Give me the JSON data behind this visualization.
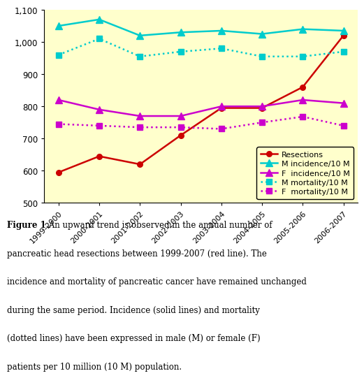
{
  "x_labels": [
    "1999-2000",
    "2000-2001",
    "2001-2002",
    "2002-2003",
    "2003-2004",
    "2004-2005",
    "2005-2006",
    "2006-2007"
  ],
  "x_positions": [
    0,
    1,
    2,
    3,
    4,
    5,
    6,
    7
  ],
  "resections": [
    595,
    645,
    620,
    710,
    795,
    795,
    860,
    1020
  ],
  "m_incidence": [
    1050,
    1070,
    1020,
    1030,
    1035,
    1025,
    1040,
    1035
  ],
  "f_incidence": [
    820,
    790,
    770,
    770,
    800,
    800,
    820,
    810
  ],
  "m_mortality": [
    960,
    1010,
    955,
    970,
    980,
    955,
    955,
    970
  ],
  "f_mortality": [
    745,
    740,
    735,
    735,
    730,
    750,
    768,
    740
  ],
  "ylim": [
    500,
    1100
  ],
  "yticks": [
    500,
    600,
    700,
    800,
    900,
    1000,
    1100
  ],
  "ytick_labels": [
    "500",
    "600",
    "700",
    "800",
    "900",
    "1,000",
    "1,100"
  ],
  "resections_color": "#cc0000",
  "m_incidence_color": "#00cccc",
  "f_incidence_color": "#cc00cc",
  "m_mortality_color": "#00cccc",
  "f_mortality_color": "#cc00cc",
  "background_color": "#ffffcc",
  "legend_labels": [
    "Resections",
    "M incidence/10 M",
    "F  incidence/10 M",
    "M mortality/10 M",
    "F  mortality/10 M"
  ],
  "caption_bold": "Figure 1.",
  "caption_rest": " An upward trend is observed in the annual number of pancreatic head resections between 1999-2007 (red line). The incidence and mortality of pancreatic cancer have remained unchanged during the same period. Incidence (solid lines) and mortality (dotted lines) have been expressed in male (M) or female (F) patients per 10 million (10 M) population."
}
